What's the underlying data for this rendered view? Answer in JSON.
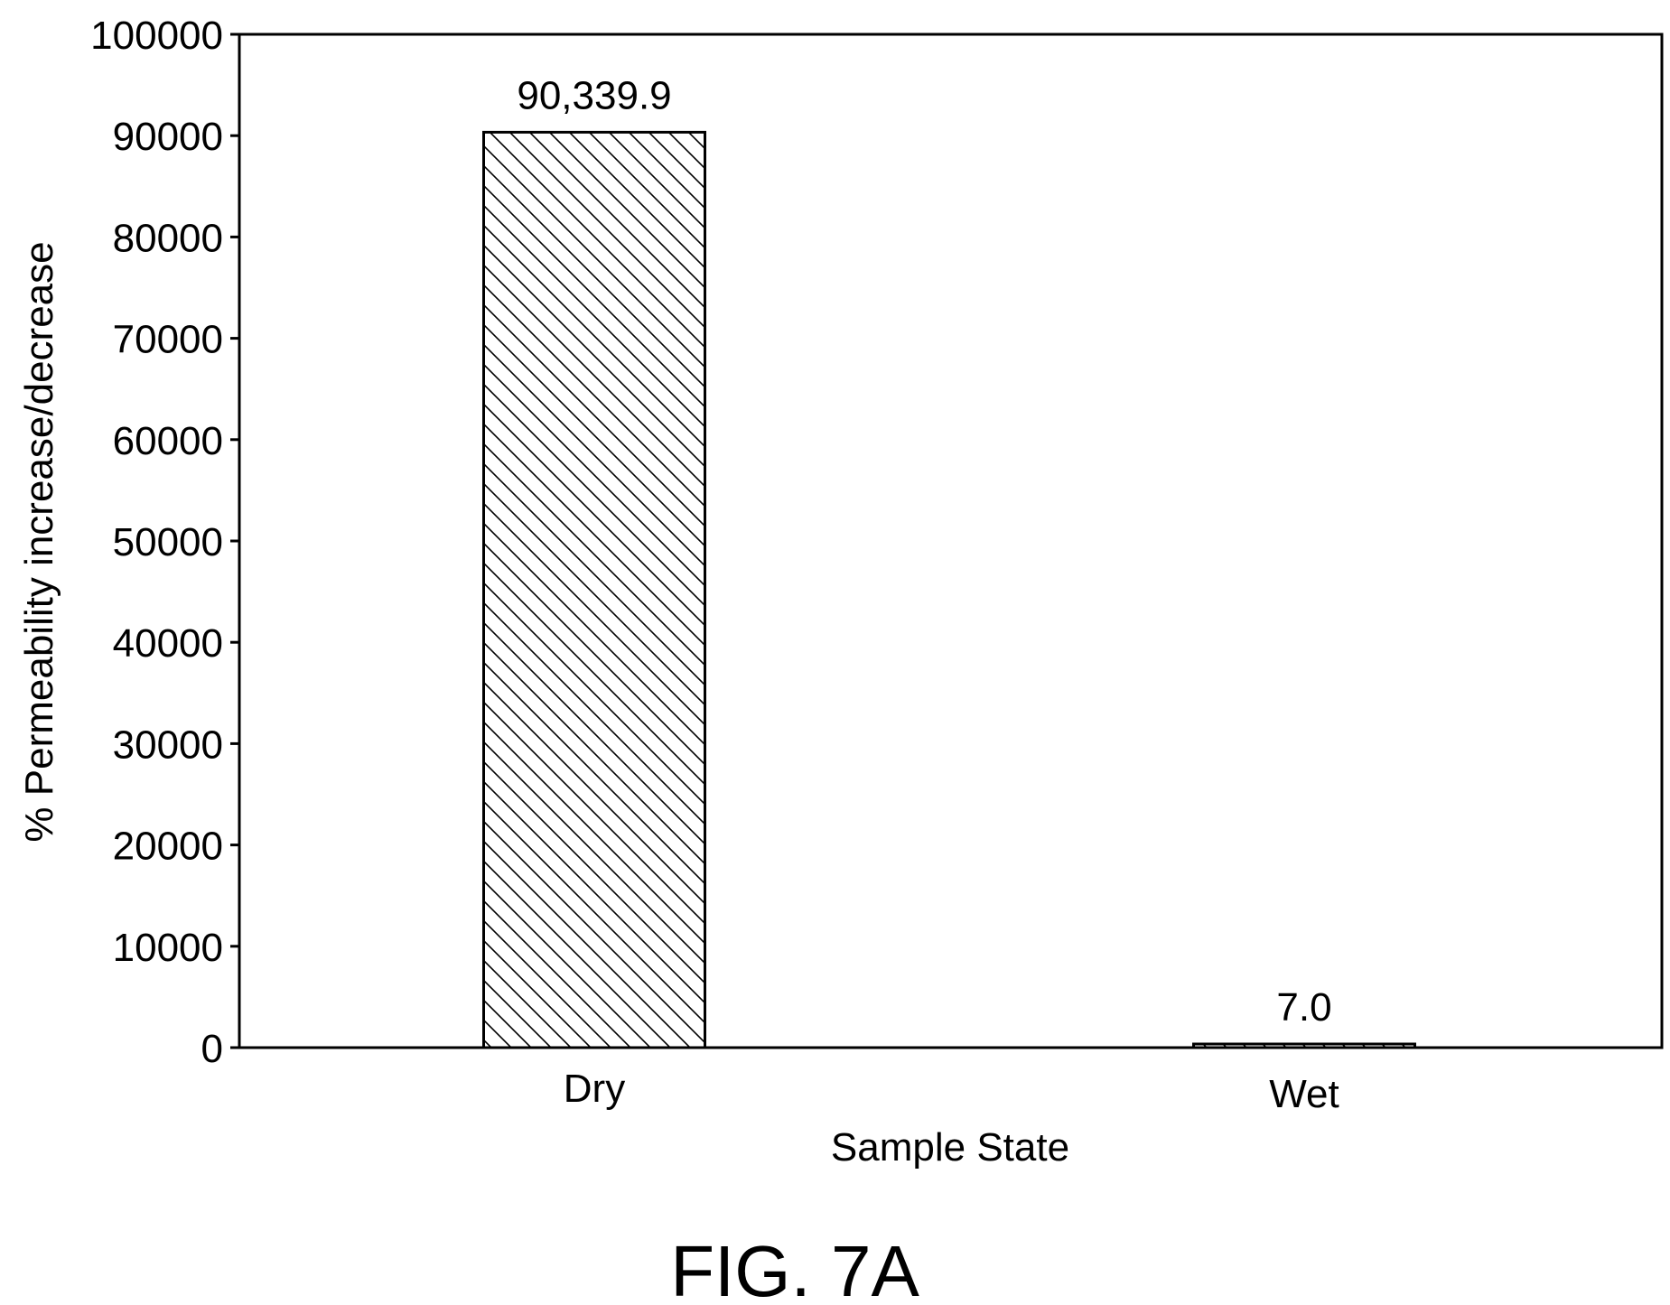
{
  "chart_data": {
    "type": "bar",
    "categories": [
      "Dry",
      "Wet"
    ],
    "values": [
      90339.9,
      7.0
    ],
    "data_labels": [
      "90,339.9",
      "7.0"
    ],
    "xlabel": "Sample State",
    "ylabel": "% Permeability increase/decrease",
    "ylim": [
      0,
      100000
    ],
    "yticks": [
      0,
      10000,
      20000,
      30000,
      40000,
      50000,
      60000,
      70000,
      80000,
      90000,
      100000
    ],
    "grid": false,
    "legend": "none",
    "bar_pattern": "diagonal-hatch",
    "colors": {
      "bar_fill": "#ffffff",
      "bar_stroke": "#000000",
      "hatch": "#000000"
    }
  },
  "caption": "FIG. 7A"
}
